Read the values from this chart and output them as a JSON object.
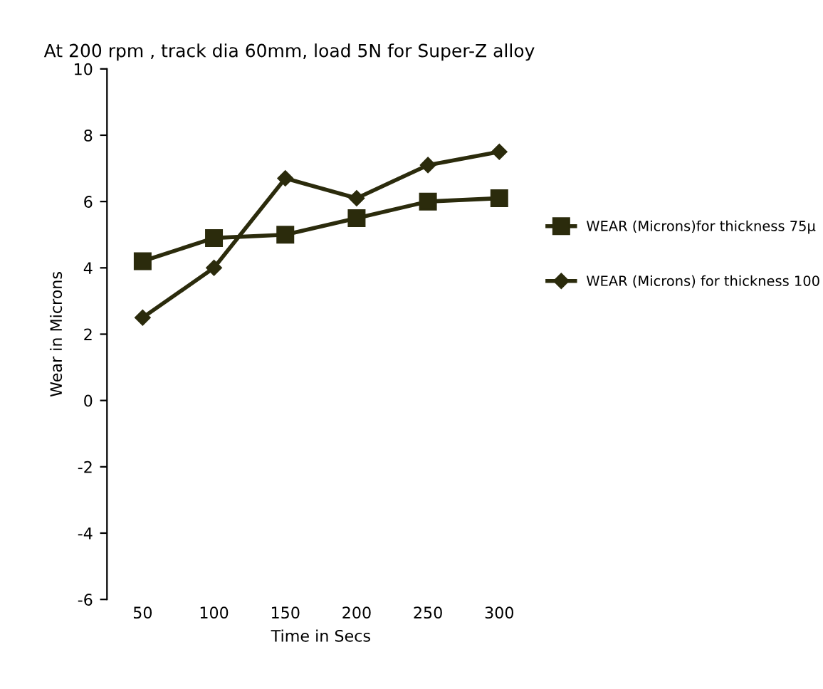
{
  "chart_data": {
    "type": "line",
    "title": "At 200 rpm , track dia 60mm, load 5N for Super-Z alloy",
    "xlabel": "Time in Secs",
    "ylabel": "Wear in Microns",
    "categories": [
      "50",
      "100",
      "150",
      "200",
      "250",
      "300"
    ],
    "series": [
      {
        "name": "WEAR (Microns)for thickness 75µ",
        "color": "#2b2b0c",
        "marker": "square",
        "values": [
          4.2,
          4.9,
          5.0,
          5.5,
          6.0,
          6.1
        ]
      },
      {
        "name": "WEAR (Microns) for thickness 100",
        "color": "#2b2b0c",
        "marker": "diamond",
        "values": [
          2.5,
          4.0,
          6.7,
          6.1,
          7.1,
          7.5
        ]
      }
    ],
    "ylim": [
      -6,
      10
    ],
    "yticks": [
      -6,
      -4,
      -2,
      0,
      2,
      4,
      6,
      8,
      10
    ],
    "grid": false,
    "legend": "right",
    "line_style": "solid"
  }
}
